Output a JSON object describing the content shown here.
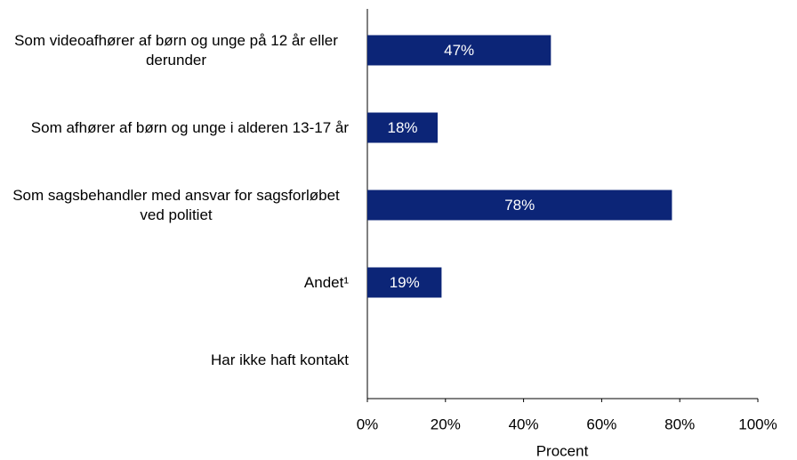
{
  "chart_data": {
    "type": "barh",
    "categories": [
      "Som videoafhører af børn og unge på 12 år eller derunder",
      "Som afhører af børn og unge i alderen 13-17 år",
      "Som sagsbehandler med ansvar for sagsforløbet ved politiet",
      "Andet¹",
      "Har ikke haft kontakt"
    ],
    "values": [
      47,
      18,
      78,
      19,
      0
    ],
    "value_labels": [
      "47%",
      "18%",
      "78%",
      "19%",
      null
    ],
    "color": "#0c2577",
    "xlim": [
      0,
      100
    ],
    "xticks": [
      {
        "value": 0,
        "label": "0%"
      },
      {
        "value": 20,
        "label": "20%"
      },
      {
        "value": 40,
        "label": "40%"
      },
      {
        "value": 60,
        "label": "60%"
      },
      {
        "value": 80,
        "label": "80%"
      },
      {
        "value": 100,
        "label": "100%"
      }
    ],
    "xlabel": "Procent",
    "grid": false
  }
}
